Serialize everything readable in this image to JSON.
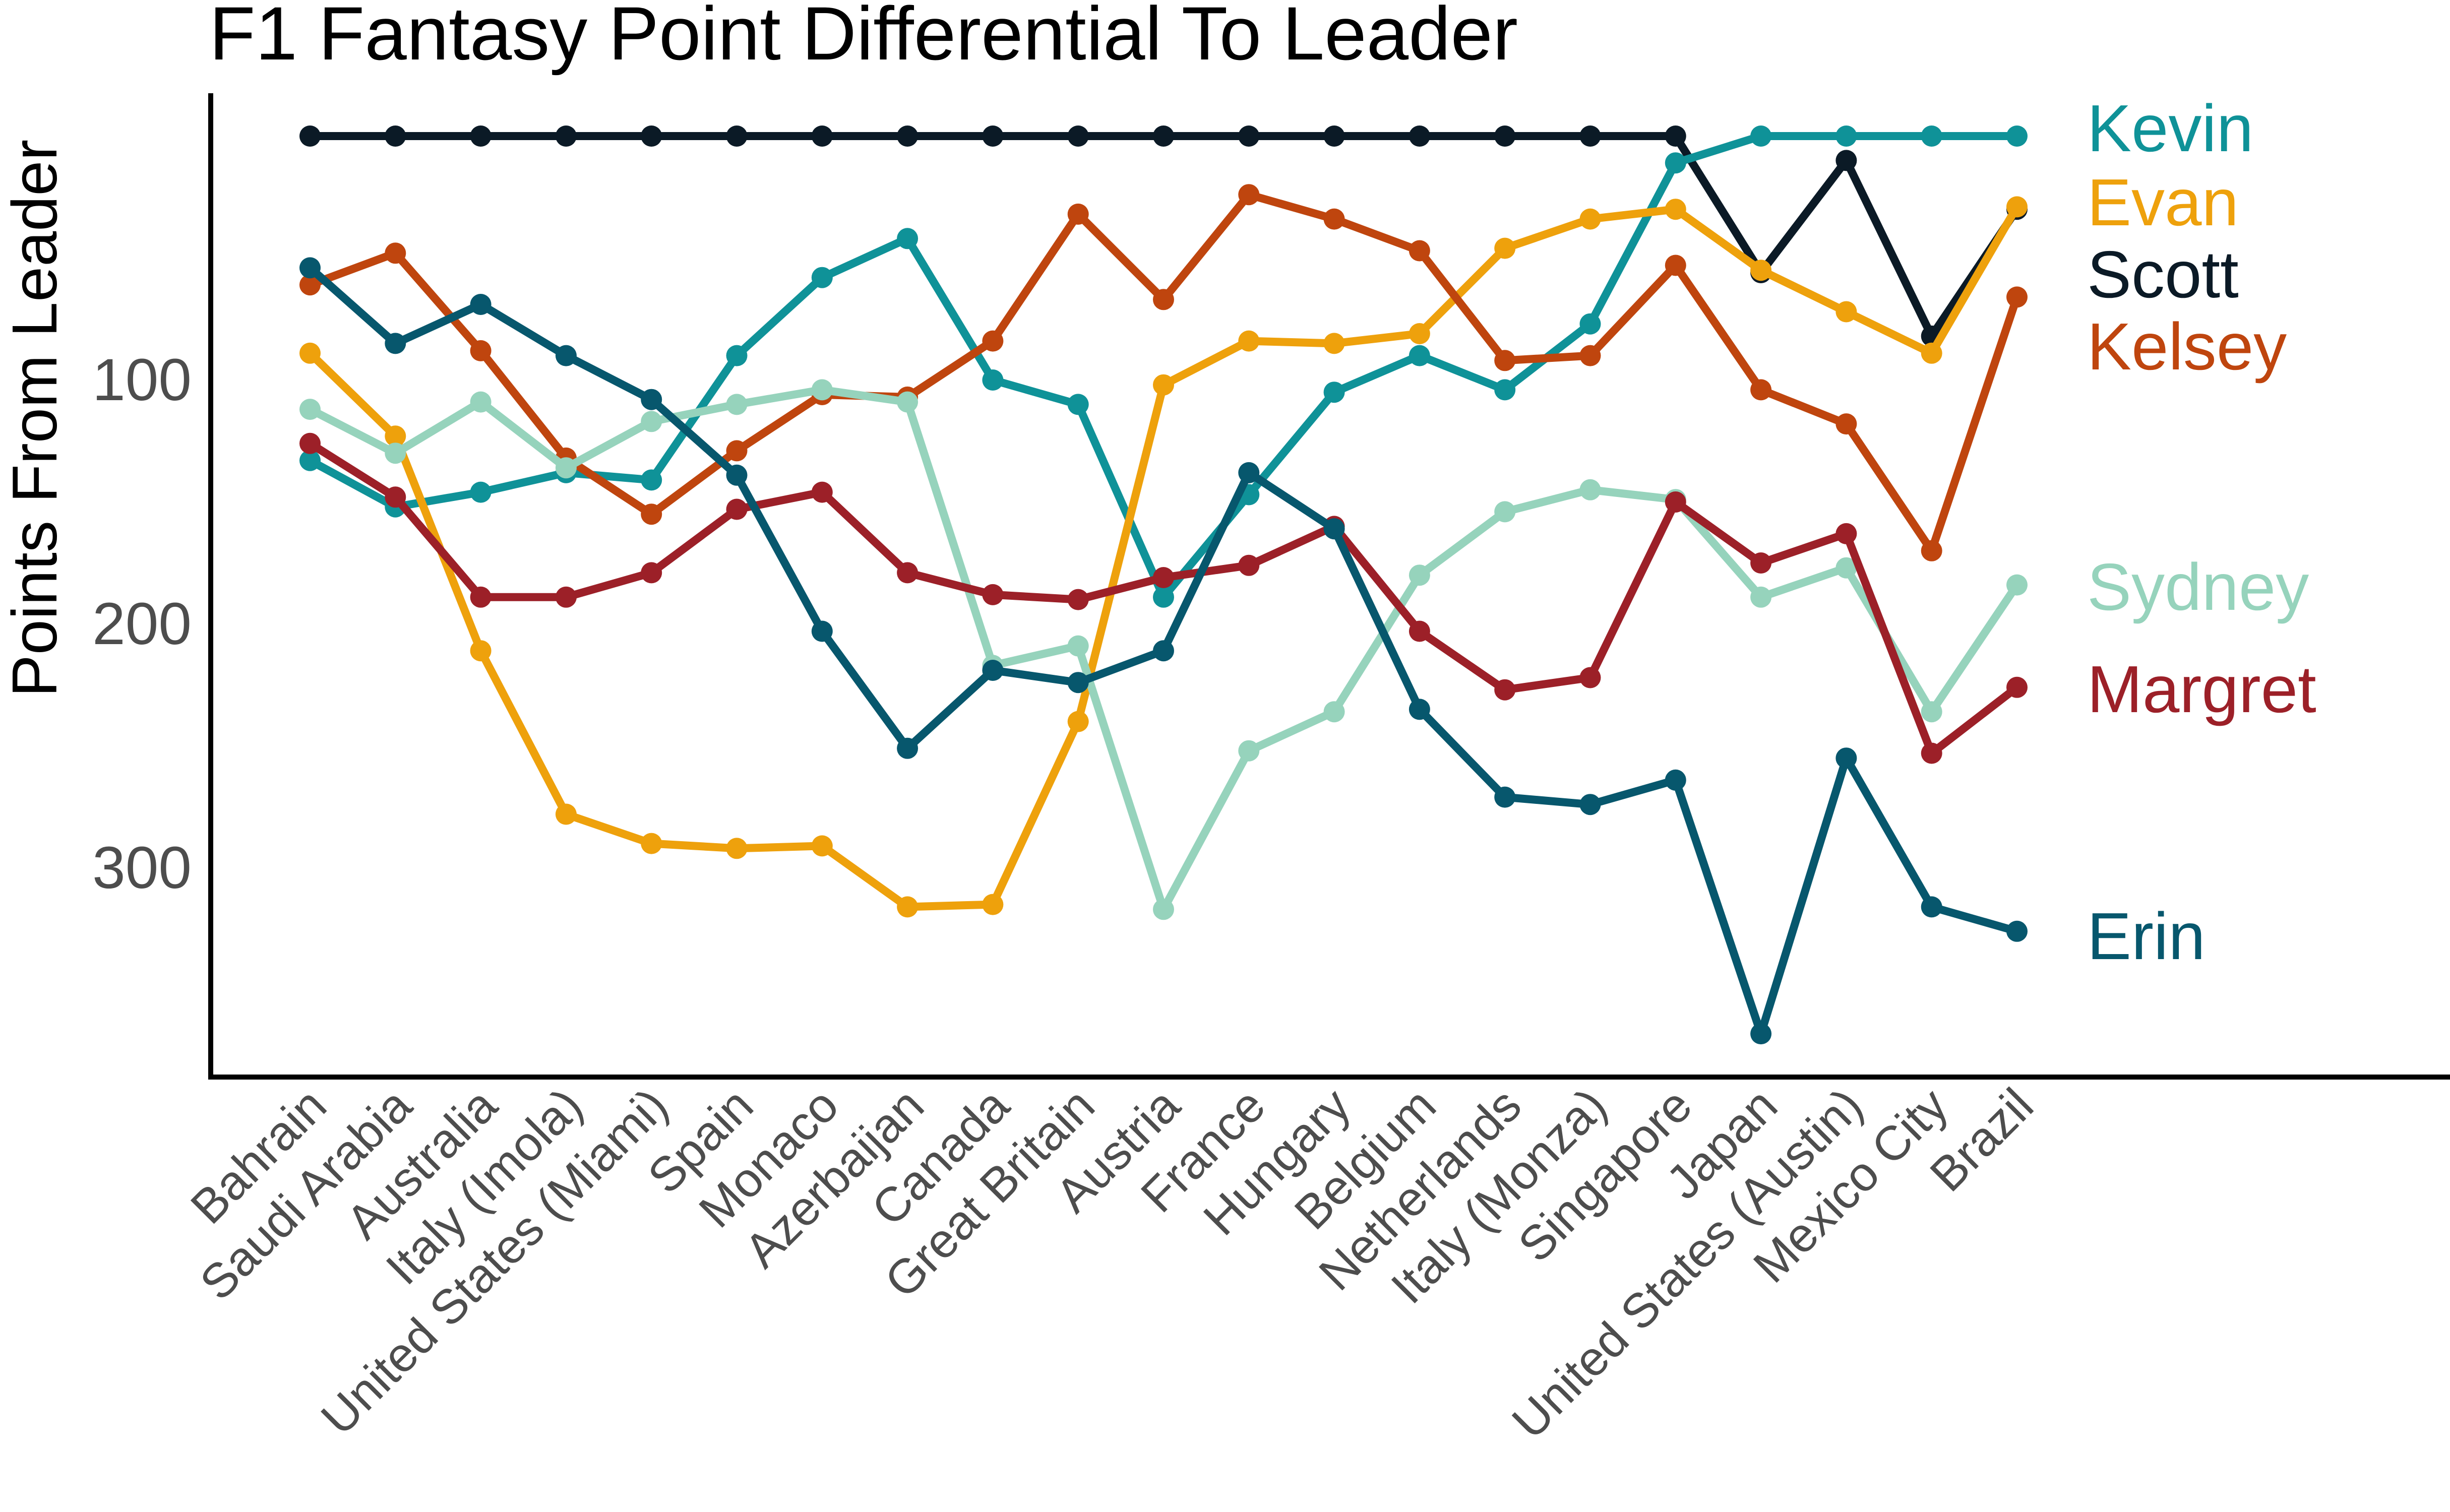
{
  "chart_data": {
    "type": "line",
    "title": "F1 Fantasy Point Differential To Leader",
    "xlabel": "",
    "ylabel": "Points From Leader",
    "y_reversed": true,
    "ylim": [
      0,
      390
    ],
    "yticks": [
      100,
      200,
      300
    ],
    "grid": false,
    "legend": "direct labels at right end of lines",
    "categories": [
      "Bahrain",
      "Saudi Arabia",
      "Australia",
      "Italy (Imola)",
      "United States (Miami)",
      "Spain",
      "Monaco",
      "Azerbaijan",
      "Canada",
      "Great Britain",
      "Austria",
      "France",
      "Hungary",
      "Belgium",
      "Netherlands",
      "Italy (Monza)",
      "Singapore",
      "Japan",
      "United States (Austin)",
      "Mexico City",
      "Brazil"
    ],
    "series": [
      {
        "name": "Scott",
        "color": "#0b1a26",
        "values": [
          0,
          0,
          0,
          0,
          0,
          0,
          0,
          0,
          0,
          0,
          0,
          0,
          0,
          0,
          0,
          0,
          0,
          56,
          10,
          82,
          30
        ]
      },
      {
        "name": "Kevin",
        "color": "#0f9298",
        "values": [
          133,
          152,
          146,
          138,
          141,
          90,
          58,
          42,
          100,
          110,
          189,
          147,
          105,
          90,
          104,
          77,
          11,
          0,
          0,
          0,
          0
        ]
      },
      {
        "name": "Evan",
        "color": "#eea10c",
        "values": [
          89,
          123,
          211,
          278,
          290,
          292,
          291,
          316,
          315,
          240,
          102,
          84,
          85,
          81,
          46,
          34,
          30,
          55,
          72,
          89,
          29
        ]
      },
      {
        "name": "Kelsey",
        "color": "#bf450e",
        "values": [
          61,
          48,
          88,
          132,
          155,
          129,
          106,
          107,
          84,
          32,
          67,
          24,
          34,
          47,
          92,
          90,
          53,
          104,
          118,
          170,
          66
        ]
      },
      {
        "name": "Sydney",
        "color": "#96d3bc",
        "values": [
          112,
          130,
          109,
          136,
          117,
          110,
          104,
          109,
          217,
          209,
          317,
          252,
          236,
          180,
          154,
          145,
          149,
          189,
          177,
          236,
          184
        ]
      },
      {
        "name": "Margret",
        "color": "#9c2028",
        "values": [
          126,
          148,
          189,
          189,
          179,
          153,
          146,
          179,
          188,
          190,
          181,
          176,
          160,
          203,
          227,
          222,
          150,
          175,
          163,
          253,
          226
        ]
      },
      {
        "name": "Erin",
        "color": "#07576d",
        "values": [
          54,
          85,
          69,
          90,
          108,
          139,
          203,
          251,
          219,
          224,
          211,
          138,
          161,
          235,
          271,
          274,
          264,
          368,
          255,
          316,
          326
        ]
      }
    ],
    "label_order_top_to_bottom": [
      "Kevin",
      "Evan",
      "Scott",
      "Kelsey",
      "Sydney",
      "Margret",
      "Erin"
    ]
  }
}
